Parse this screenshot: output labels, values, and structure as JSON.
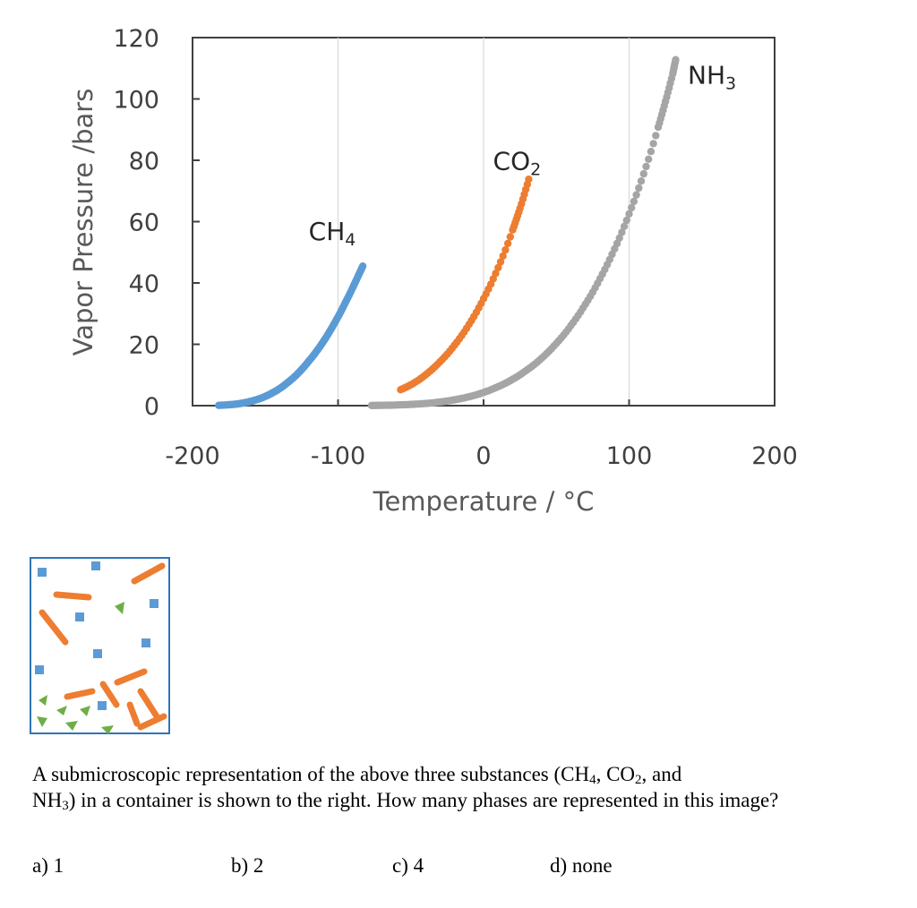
{
  "chart_data": {
    "type": "scatter",
    "title": "",
    "xlabel": "Temperature / °C",
    "ylabel": "Vapor Pressure /bars",
    "xlim": [
      -200,
      200
    ],
    "ylim": [
      0,
      120
    ],
    "xticks": [
      -200,
      -100,
      0,
      100,
      200
    ],
    "yticks": [
      0,
      20,
      40,
      60,
      80,
      100,
      120
    ],
    "grid": "vertical",
    "series": [
      {
        "name": "CH4",
        "label": "CH",
        "label_sub": "4",
        "color": "#5B9BD5",
        "x": [
          -182,
          -175,
          -170,
          -165,
          -160,
          -155,
          -150,
          -145,
          -140,
          -135,
          -130,
          -125,
          -120,
          -115,
          -110,
          -105,
          -100,
          -95,
          -90,
          -86,
          -83
        ],
        "y": [
          0.1,
          0.3,
          0.5,
          0.9,
          1.4,
          2.1,
          3.0,
          4.2,
          5.6,
          7.4,
          9.4,
          11.8,
          14.6,
          17.6,
          21.0,
          24.8,
          29.0,
          33.6,
          38.4,
          42.5,
          45.5
        ]
      },
      {
        "name": "CO2",
        "label": "CO",
        "label_sub": "2",
        "color": "#ED7D31",
        "x": [
          -57,
          -50,
          -40,
          -30,
          -20,
          -10,
          0,
          10,
          20,
          25,
          31
        ],
        "y": [
          5.2,
          6.8,
          10.0,
          14.3,
          19.7,
          26.5,
          34.9,
          45.0,
          57.3,
          64.3,
          73.8
        ]
      },
      {
        "name": "NH3",
        "label": "NH",
        "label_sub": "3",
        "color": "#A5A5A5",
        "x": [
          -77,
          -70,
          -60,
          -50,
          -40,
          -30,
          -20,
          -10,
          0,
          10,
          20,
          30,
          40,
          50,
          60,
          70,
          80,
          90,
          100,
          110,
          120,
          125,
          130,
          132
        ],
        "y": [
          0.06,
          0.1,
          0.2,
          0.4,
          0.7,
          1.2,
          1.9,
          2.9,
          4.3,
          6.2,
          8.6,
          11.7,
          15.5,
          20.3,
          26.1,
          33.1,
          41.4,
          51.1,
          62.5,
          75.6,
          90.8,
          99.2,
          108.2,
          112.8
        ]
      }
    ]
  },
  "question": {
    "line1_a": "A submicroscopic representation of the above three substances (CH",
    "sub1": "4",
    "line1_b": ", CO",
    "sub2": "2",
    "line1_c": ", and",
    "line2_a": "NH",
    "sub3": "3",
    "line2_b": ") in a container is shown to the right.  How many phases are represented in this image?",
    "options": [
      "a)  1",
      "b) 2",
      "c) 4",
      "d) none"
    ]
  },
  "container": {
    "border_color": "#2E75B6",
    "square_color": "#5B9BD5",
    "rod_color": "#ED7D31",
    "triangle_color": "#70AD47"
  }
}
